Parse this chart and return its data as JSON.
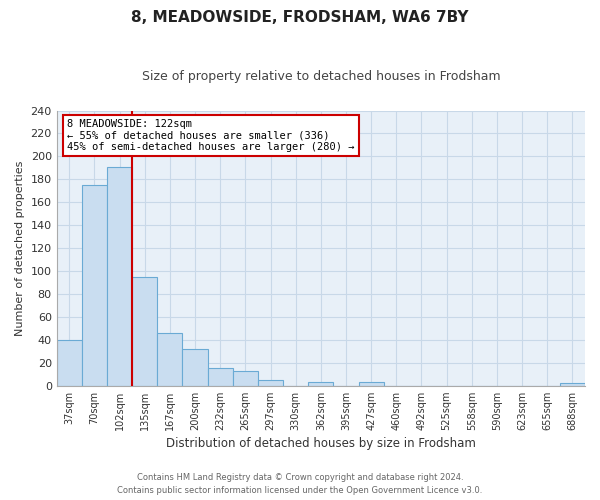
{
  "title": "8, MEADOWSIDE, FRODSHAM, WA6 7BY",
  "subtitle": "Size of property relative to detached houses in Frodsham",
  "xlabel": "Distribution of detached houses by size in Frodsham",
  "ylabel": "Number of detached properties",
  "bar_labels": [
    "37sqm",
    "70sqm",
    "102sqm",
    "135sqm",
    "167sqm",
    "200sqm",
    "232sqm",
    "265sqm",
    "297sqm",
    "330sqm",
    "362sqm",
    "395sqm",
    "427sqm",
    "460sqm",
    "492sqm",
    "525sqm",
    "558sqm",
    "590sqm",
    "623sqm",
    "655sqm",
    "688sqm"
  ],
  "bar_values": [
    40,
    175,
    191,
    95,
    46,
    32,
    15,
    13,
    5,
    0,
    3,
    0,
    3,
    0,
    0,
    0,
    0,
    0,
    0,
    0,
    2
  ],
  "bar_color": "#c9ddf0",
  "bar_edge_color": "#6aaad4",
  "highlight_bar_index": 2,
  "highlight_color": "#cc0000",
  "ylim": [
    0,
    240
  ],
  "yticks": [
    0,
    20,
    40,
    60,
    80,
    100,
    120,
    140,
    160,
    180,
    200,
    220,
    240
  ],
  "annotation_title": "8 MEADOWSIDE: 122sqm",
  "annotation_line1": "← 55% of detached houses are smaller (336)",
  "annotation_line2": "45% of semi-detached houses are larger (280) →",
  "annotation_box_color": "#ffffff",
  "annotation_box_edge": "#cc0000",
  "footer_line1": "Contains HM Land Registry data © Crown copyright and database right 2024.",
  "footer_line2": "Contains public sector information licensed under the Open Government Licence v3.0.",
  "grid_color": "#c8d8e8",
  "plot_bg_color": "#e8f0f8",
  "background_color": "#ffffff"
}
